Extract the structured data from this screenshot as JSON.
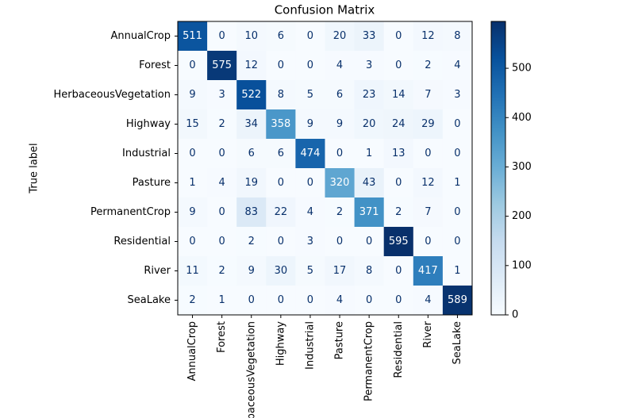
{
  "chart_data": {
    "type": "heatmap",
    "title": "Confusion Matrix",
    "ylabel": "True label",
    "categories": [
      "AnnualCrop",
      "Forest",
      "HerbaceousVegetation",
      "Highway",
      "Industrial",
      "Pasture",
      "PermanentCrop",
      "Residential",
      "River",
      "SeaLake"
    ],
    "values": [
      [
        511,
        0,
        10,
        6,
        0,
        20,
        33,
        0,
        12,
        8
      ],
      [
        0,
        575,
        12,
        0,
        0,
        4,
        3,
        0,
        2,
        4
      ],
      [
        9,
        3,
        522,
        8,
        5,
        6,
        23,
        14,
        7,
        3
      ],
      [
        15,
        2,
        34,
        358,
        9,
        9,
        20,
        24,
        29,
        0
      ],
      [
        0,
        0,
        6,
        6,
        474,
        0,
        1,
        13,
        0,
        0
      ],
      [
        1,
        4,
        19,
        0,
        0,
        320,
        43,
        0,
        12,
        1
      ],
      [
        9,
        0,
        83,
        22,
        4,
        2,
        371,
        2,
        7,
        0
      ],
      [
        0,
        0,
        2,
        0,
        3,
        0,
        0,
        595,
        0,
        0
      ],
      [
        11,
        2,
        9,
        30,
        5,
        17,
        8,
        0,
        417,
        1
      ],
      [
        2,
        1,
        0,
        0,
        0,
        4,
        0,
        0,
        4,
        589
      ]
    ],
    "colormap": "Blues",
    "clim": [
      0,
      595
    ],
    "cticks": [
      0,
      100,
      200,
      300,
      400,
      500
    ]
  }
}
